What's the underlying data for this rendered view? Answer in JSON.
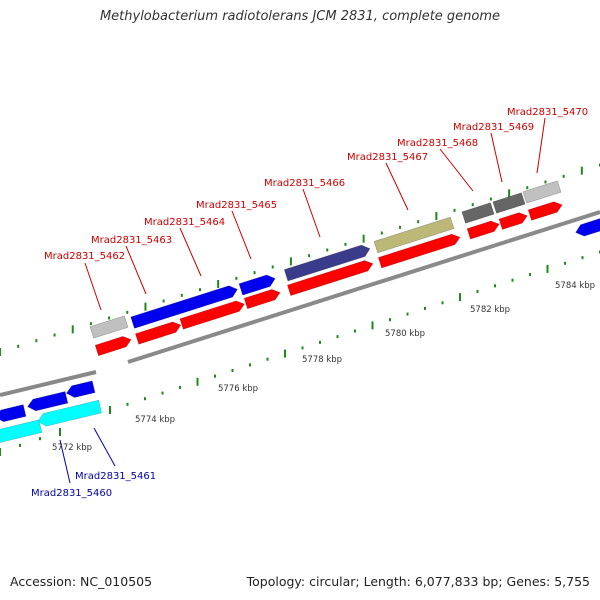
{
  "title": "Methylobacterium radiotolerans JCM 2831, complete genome",
  "footer": {
    "accession": "Accession: NC_010505",
    "stats": "Topology: circular; Length: 6,077,833 bp; Genes: 5,755"
  },
  "colors": {
    "gene_red": "#ff0000",
    "gene_blue": "#0000ee",
    "gene_cyan": "#00ffff",
    "gene_navy": "#3b3b8c",
    "gene_olive": "#bcb878",
    "gene_darkgray": "#666666",
    "gene_lightgray": "#c0c0c0",
    "tick_green": "#1a8c1a",
    "backbone": "#888888",
    "label_red": "#cc0000",
    "label_blue": "#0000aa"
  },
  "scale": {
    "unit": "kbp",
    "ticks": [
      {
        "value": 5772,
        "label": "5772 kbp"
      },
      {
        "value": 5774,
        "label": "5774 kbp"
      },
      {
        "value": 5776,
        "label": "5776 kbp"
      },
      {
        "value": 5778,
        "label": "5778 kbp"
      },
      {
        "value": 5780,
        "label": "5780 kbp"
      },
      {
        "value": 5782,
        "label": "5782 kbp"
      },
      {
        "value": 5784,
        "label": "5784 kbp"
      }
    ]
  },
  "gene_labels": [
    {
      "label": "Mrad2831_5460",
      "color": "label_blue"
    },
    {
      "label": "Mrad2831_5461",
      "color": "label_blue"
    },
    {
      "label": "Mrad2831_5462",
      "color": "label_red"
    },
    {
      "label": "Mrad2831_5463",
      "color": "label_red"
    },
    {
      "label": "Mrad2831_5464",
      "color": "label_red"
    },
    {
      "label": "Mrad2831_5465",
      "color": "label_red"
    },
    {
      "label": "Mrad2831_5466",
      "color": "label_red"
    },
    {
      "label": "Mrad2831_5467",
      "color": "label_red"
    },
    {
      "label": "Mrad2831_5468",
      "color": "label_red"
    },
    {
      "label": "Mrad2831_5469",
      "color": "label_red"
    },
    {
      "label": "Mrad2831_5470",
      "color": "label_red"
    }
  ]
}
